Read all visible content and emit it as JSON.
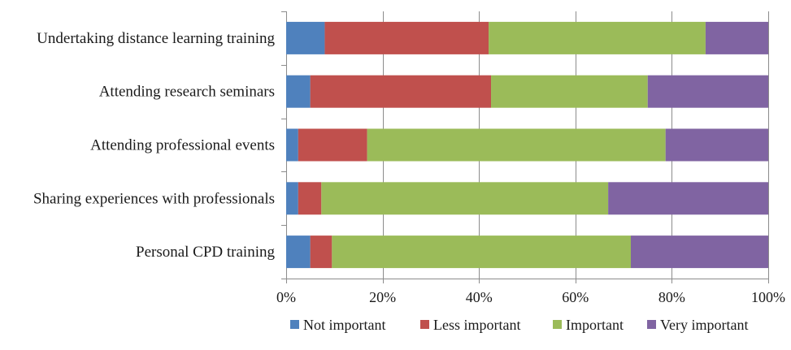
{
  "chart_data": {
    "type": "bar",
    "orientation": "horizontal",
    "stacked": "percent",
    "title": "",
    "xlabel": "",
    "ylabel": "",
    "categories": [
      "Undertaking distance learning training",
      "Attending research seminars",
      "Attending professional events",
      "Sharing experiences with professionals",
      "Personal CPD training"
    ],
    "series": [
      {
        "name": "Not important",
        "color": "#4f81bd",
        "values": [
          8,
          5,
          2.5,
          2.5,
          5
        ]
      },
      {
        "name": "Less important",
        "color": "#c0504d",
        "values": [
          34,
          37.5,
          14.3,
          4.8,
          4.5
        ]
      },
      {
        "name": "Important",
        "color": "#9bbb59",
        "values": [
          45,
          32.5,
          61.9,
          59.5,
          62
        ]
      },
      {
        "name": "Very important",
        "color": "#8064a2",
        "values": [
          13,
          25,
          21.3,
          33.2,
          28.5
        ]
      }
    ],
    "xlim": [
      0,
      100
    ],
    "xticks": [
      0,
      20,
      40,
      60,
      80,
      100
    ],
    "xtick_labels": [
      "0%",
      "20%",
      "40%",
      "60%",
      "80%",
      "100%"
    ],
    "grid": {
      "vertical": true,
      "horizontal": false,
      "color": "#8c8c8c"
    },
    "legend": {
      "position": "bottom"
    }
  }
}
